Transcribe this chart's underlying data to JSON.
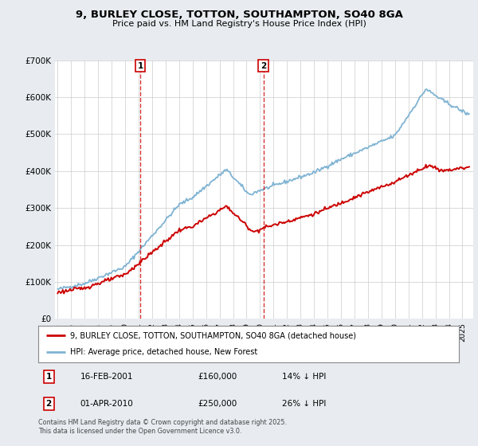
{
  "title": "9, BURLEY CLOSE, TOTTON, SOUTHAMPTON, SO40 8GA",
  "subtitle": "Price paid vs. HM Land Registry's House Price Index (HPI)",
  "legend_label_red": "9, BURLEY CLOSE, TOTTON, SOUTHAMPTON, SO40 8GA (detached house)",
  "legend_label_blue": "HPI: Average price, detached house, New Forest",
  "footnote": "Contains HM Land Registry data © Crown copyright and database right 2025.\nThis data is licensed under the Open Government Licence v3.0.",
  "marker1_date": "16-FEB-2001",
  "marker1_price": "£160,000",
  "marker1_hpi": "14% ↓ HPI",
  "marker1_year": 2001.12,
  "marker2_date": "01-APR-2010",
  "marker2_price": "£250,000",
  "marker2_hpi": "26% ↓ HPI",
  "marker2_year": 2010.25,
  "ylim": [
    0,
    700000
  ],
  "xlim": [
    1994.8,
    2025.8
  ],
  "yticks": [
    0,
    100000,
    200000,
    300000,
    400000,
    500000,
    600000,
    700000
  ],
  "ytick_labels": [
    "£0",
    "£100K",
    "£200K",
    "£300K",
    "£400K",
    "£500K",
    "£600K",
    "£700K"
  ],
  "bg_color": "#e8ecf0",
  "plot_bg_color": "#ffffff",
  "red_color": "#cc0000",
  "blue_color": "#7fb3d3",
  "vline_color": "#cc0000",
  "grid_color": "#cccccc"
}
